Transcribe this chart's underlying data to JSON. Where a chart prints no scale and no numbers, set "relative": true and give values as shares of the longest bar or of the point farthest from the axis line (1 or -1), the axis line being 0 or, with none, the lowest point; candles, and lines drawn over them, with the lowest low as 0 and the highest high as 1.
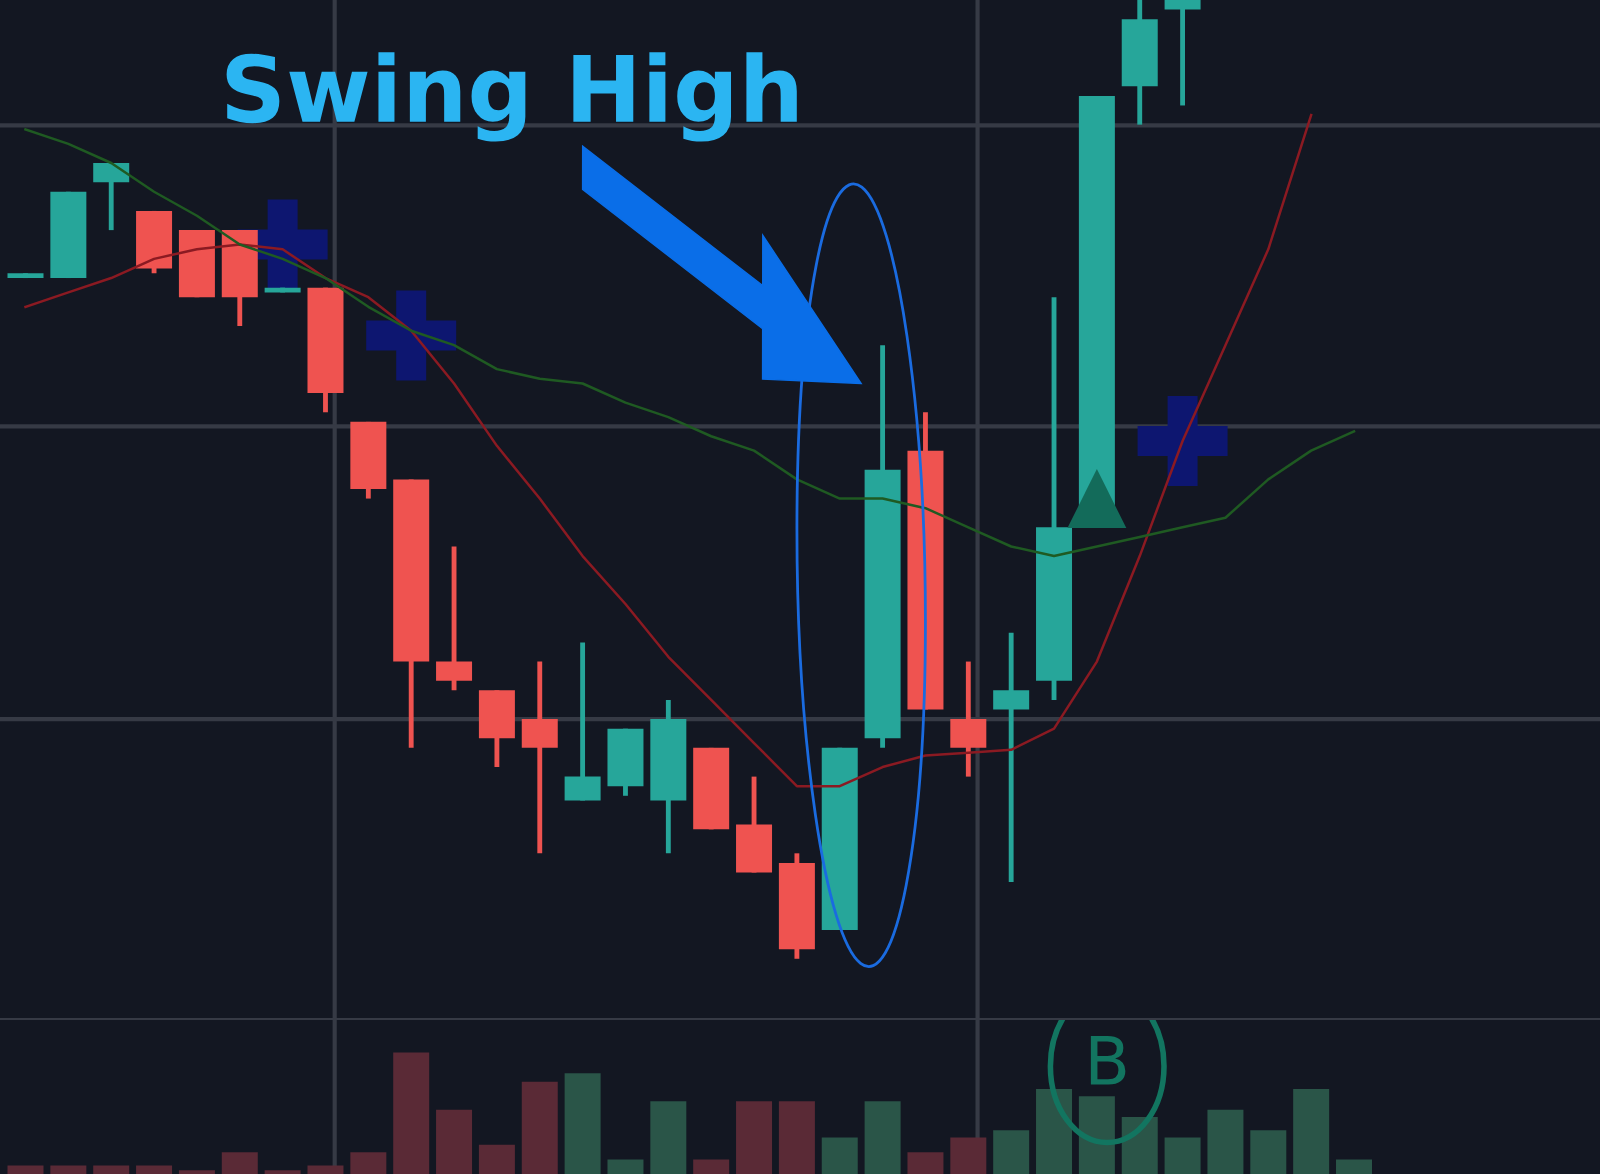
{
  "chart_data": [
    {
      "type": "candlestick",
      "relative": true,
      "grid": true,
      "categories": [
        null,
        null,
        null,
        null,
        null,
        null,
        null,
        null,
        null,
        null,
        null,
        null,
        null,
        null,
        null,
        null,
        null,
        null,
        null,
        null,
        null,
        null,
        null,
        null,
        null,
        null,
        null,
        null,
        null,
        null,
        null,
        null
      ],
      "ohlc": [
        [
          0.71,
          0.715,
          0.71,
          0.715
        ],
        [
          0.71,
          0.8,
          0.71,
          0.8
        ],
        [
          0.81,
          0.83,
          0.76,
          0.83
        ],
        [
          0.78,
          0.78,
          0.715,
          0.72
        ],
        [
          0.76,
          0.76,
          0.69,
          0.69
        ],
        [
          0.76,
          0.76,
          0.66,
          0.69
        ],
        [
          0.695,
          0.7,
          0.695,
          0.7
        ],
        [
          0.7,
          0.7,
          0.57,
          0.59
        ],
        [
          0.56,
          0.56,
          0.48,
          0.49
        ],
        [
          0.5,
          0.5,
          0.22,
          0.31
        ],
        [
          0.31,
          0.43,
          0.28,
          0.29
        ],
        [
          0.28,
          0.28,
          0.2,
          0.23
        ],
        [
          0.25,
          0.31,
          0.11,
          0.22
        ],
        [
          0.165,
          0.33,
          0.165,
          0.19
        ],
        [
          0.18,
          0.24,
          0.17,
          0.24
        ],
        [
          0.165,
          0.27,
          0.11,
          0.25
        ],
        [
          0.22,
          0.22,
          0.135,
          0.135
        ],
        [
          0.14,
          0.19,
          0.09,
          0.09
        ],
        [
          0.1,
          0.11,
          0.0,
          0.01
        ],
        [
          0.03,
          0.22,
          0.03,
          0.22
        ],
        [
          0.23,
          0.64,
          0.22,
          0.51
        ],
        [
          0.53,
          0.57,
          0.26,
          0.26
        ],
        [
          0.25,
          0.31,
          0.19,
          0.22
        ],
        [
          0.26,
          0.34,
          0.08,
          0.28
        ],
        [
          0.29,
          0.69,
          0.27,
          0.45
        ],
        [
          0.47,
          0.9,
          0.47,
          0.9
        ],
        [
          0.91,
          1.0,
          0.87,
          0.98
        ],
        [
          0.99,
          1.0,
          0.89,
          1.0
        ],
        null,
        null,
        null,
        null
      ],
      "colors": [
        "#26a69a",
        "#26a69a",
        "#26a69a",
        "#ef5350",
        "#ef5350",
        "#ef5350",
        "#26a69a",
        "#ef5350",
        "#ef5350",
        "#ef5350",
        "#ef5350",
        "#ef5350",
        "#ef5350",
        "#26a69a",
        "#26a69a",
        "#26a69a",
        "#ef5350",
        "#ef5350",
        "#ef5350",
        "#26a69a",
        "#26a69a",
        "#ef5350",
        "#ef5350",
        "#26a69a",
        "#26a69a",
        "#26a69a",
        "#26a69a",
        "#26a69a",
        null,
        null,
        null,
        null
      ],
      "series": [
        {
          "type": "line",
          "color": "#8b1a22",
          "values": [
            0.68,
            0.695,
            0.71,
            0.73,
            0.74,
            0.745,
            0.74,
            0.71,
            0.69,
            0.655,
            0.6,
            0.535,
            0.48,
            0.42,
            0.37,
            0.315,
            0.27,
            0.225,
            0.18,
            0.18,
            0.2,
            0.212,
            0.215,
            0.218,
            0.24,
            0.31,
            0.42,
            0.54,
            0.64,
            0.74,
            0.88,
            null
          ]
        },
        {
          "type": "line",
          "color": "#1f5a22",
          "values": [
            0.865,
            0.85,
            0.83,
            0.8,
            0.775,
            0.745,
            0.73,
            0.71,
            0.68,
            0.655,
            0.64,
            0.615,
            0.605,
            0.6,
            0.58,
            0.565,
            0.545,
            0.53,
            0.5,
            0.48,
            0.48,
            0.47,
            0.45,
            0.43,
            0.42,
            0.43,
            0.44,
            0.45,
            0.46,
            0.5,
            0.53,
            0.55
          ]
        },
        {
          "type": "scatter",
          "marker": "cross",
          "color": "#0d1670",
          "values": [
            null,
            null,
            null,
            null,
            null,
            null,
            0.745,
            null,
            null,
            0.65,
            null,
            null,
            null,
            null,
            null,
            null,
            null,
            null,
            null,
            null,
            null,
            null,
            null,
            null,
            null,
            null,
            null,
            0.54,
            null,
            null,
            null,
            null
          ]
        },
        {
          "type": "scatter",
          "marker": "triangle",
          "color": "#136b5a",
          "values": [
            null,
            null,
            null,
            null,
            null,
            null,
            null,
            null,
            null,
            null,
            null,
            null,
            null,
            null,
            null,
            null,
            null,
            null,
            null,
            null,
            null,
            null,
            null,
            null,
            null,
            0.48,
            null,
            null,
            null,
            null,
            null,
            null
          ]
        }
      ],
      "annotations": [
        "Swing High"
      ]
    },
    {
      "type": "bar",
      "relative": true,
      "grid": true,
      "categories": [
        null,
        null,
        null,
        null,
        null,
        null,
        null,
        null,
        null,
        null,
        null,
        null,
        null,
        null,
        null,
        null,
        null,
        null,
        null,
        null,
        null,
        null,
        null,
        null,
        null,
        null,
        null,
        null,
        null,
        null,
        null,
        null
      ],
      "values": [
        0.07,
        0.07,
        0.07,
        0.07,
        0.03,
        0.18,
        0.03,
        0.07,
        0.18,
        1.0,
        0.53,
        0.24,
        0.76,
        0.83,
        0.12,
        0.6,
        0.12,
        0.6,
        0.6,
        0.3,
        0.6,
        0.18,
        0.3,
        0.36,
        0.7,
        0.64,
        0.47,
        0.3,
        0.53,
        0.36,
        0.7,
        0.12
      ],
      "colors": [
        "#5a2a36",
        "#5a2a36",
        "#5a2a36",
        "#5a2a36",
        "#5a2a36",
        "#5a2a36",
        "#5a2a36",
        "#5a2a36",
        "#5a2a36",
        "#5a2a36",
        "#5a2a36",
        "#5a2a36",
        "#5a2a36",
        "#2a5548",
        "#2a5548",
        "#2a5548",
        "#5a2a36",
        "#5a2a36",
        "#5a2a36",
        "#2a5548",
        "#2a5548",
        "#5a2a36",
        "#5a2a36",
        "#2a5548",
        "#2a5548",
        "#2a5548",
        "#2a5548",
        "#2a5548",
        "#2a5548",
        "#2a5548",
        "#2a5548",
        "#2a5548"
      ],
      "annotations": [
        "B"
      ]
    }
  ]
}
